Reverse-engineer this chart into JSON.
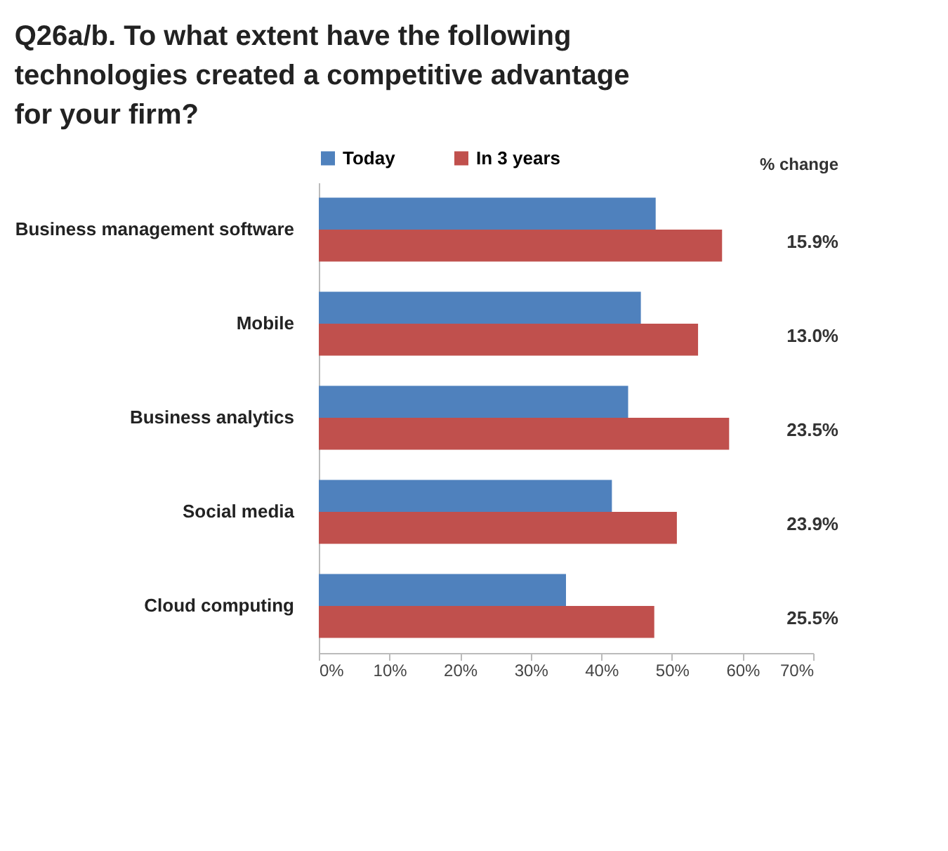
{
  "chart_data": {
    "type": "bar",
    "orientation": "horizontal",
    "title": "Q26a/b. To what extent have the following technologies created a competitive advantage for your firm?",
    "categories": [
      "Business management software",
      "Mobile",
      "Business analytics",
      "Social media",
      "Cloud computing"
    ],
    "series": [
      {
        "name": "Today",
        "color": "#4f81bd",
        "values": [
          47.7,
          45.6,
          43.8,
          41.5,
          35.0
        ]
      },
      {
        "name": "In 3 years",
        "color": "#c0504d",
        "values": [
          57.1,
          53.7,
          58.1,
          50.7,
          47.5
        ]
      }
    ],
    "xlim": [
      0,
      70
    ],
    "xticks": [
      {
        "value": 0,
        "label": "0%"
      },
      {
        "value": 10,
        "label": "10%"
      },
      {
        "value": 20,
        "label": "20%"
      },
      {
        "value": 30,
        "label": "30%"
      },
      {
        "value": 40,
        "label": "40%"
      },
      {
        "value": 50,
        "label": "50%"
      },
      {
        "value": 60,
        "label": "60%"
      },
      {
        "value": 70,
        "label": "70%"
      }
    ],
    "annotations": [
      "% change",
      "15.9%",
      "13.0%",
      "23.5%",
      "23.9%",
      "25.5%"
    ],
    "legend": "top",
    "grid": false
  }
}
